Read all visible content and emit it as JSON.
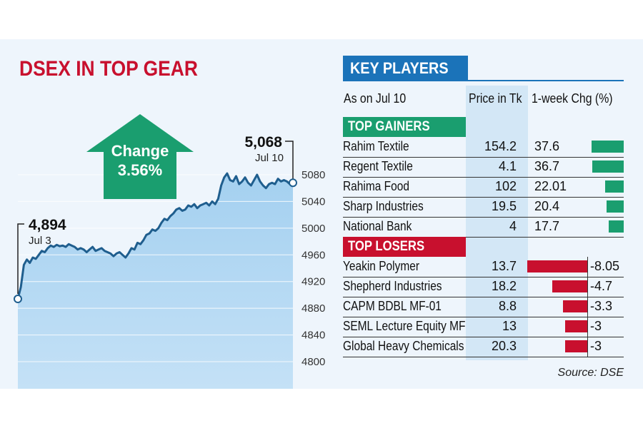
{
  "chart_data": [
    {
      "type": "area",
      "title": "DSEX IN TOP GEAR",
      "ylim": [
        4780,
        5100
      ],
      "yticks": [
        4800,
        4840,
        4880,
        4920,
        4960,
        5000,
        5040,
        5080
      ],
      "start": {
        "value": "4,894",
        "date": "Jul 3"
      },
      "end": {
        "value": "5,068",
        "date": "Jul 10"
      },
      "change": {
        "label": "Change",
        "value": "3.56%"
      },
      "values": [
        4894,
        4912,
        4945,
        4953,
        4948,
        4956,
        4954,
        4960,
        4966,
        4964,
        4970,
        4974,
        4972,
        4975,
        4973,
        4974,
        4972,
        4976,
        4974,
        4972,
        4968,
        4970,
        4968,
        4964,
        4968,
        4972,
        4966,
        4968,
        4970,
        4966,
        4964,
        4962,
        4958,
        4962,
        4964,
        4960,
        4956,
        4962,
        4970,
        4968,
        4978,
        4976,
        4982,
        4990,
        4992,
        4998,
        4996,
        5000,
        5008,
        5014,
        5012,
        5018,
        5022,
        5028,
        5030,
        5026,
        5028,
        5034,
        5032,
        5036,
        5030,
        5034,
        5036,
        5038,
        5034,
        5040,
        5036,
        5044,
        5064,
        5076,
        5082,
        5072,
        5070,
        5078,
        5066,
        5070,
        5076,
        5068,
        5064,
        5072,
        5080,
        5070,
        5064,
        5060,
        5066,
        5068,
        5066,
        5074,
        5070,
        5072,
        5070,
        5066,
        5068
      ]
    },
    {
      "type": "table",
      "title": "KEY PLAYERS",
      "as_on": "As on Jul 10",
      "columns": [
        "Price in Tk",
        "1-week Chg (%)"
      ],
      "sections": [
        {
          "label": "TOP GAINERS",
          "color": "#1a9e6f",
          "rows": [
            {
              "name": "Rahim Textile",
              "price": "154.2",
              "chg": "37.6",
              "value": 37.6
            },
            {
              "name": "Regent Textile",
              "price": "4.1",
              "chg": "36.7",
              "value": 36.7
            },
            {
              "name": "Rahima Food",
              "price": "102",
              "chg": "22.01",
              "value": 22.01
            },
            {
              "name": "Sharp Industries",
              "price": "19.5",
              "chg": "20.4",
              "value": 20.4
            },
            {
              "name": "National Bank",
              "price": "4",
              "chg": "17.7",
              "value": 17.7
            }
          ]
        },
        {
          "label": "TOP LOSERS",
          "color": "#c8102e",
          "rows": [
            {
              "name": "Yeakin Polymer",
              "price": "13.7",
              "chg": "-8.05",
              "value": -8.05
            },
            {
              "name": "Shepherd Industries",
              "price": "18.2",
              "chg": "-4.7",
              "value": -4.7
            },
            {
              "name": "CAPM BDBL MF-01",
              "price": "8.8",
              "chg": "-3.3",
              "value": -3.3
            },
            {
              "name": "SEML Lecture Equity MF",
              "price": "13",
              "chg": "-3",
              "value": -3
            },
            {
              "name": "Global Heavy Chemicals",
              "price": "20.3",
              "chg": "-3",
              "value": -3
            }
          ]
        }
      ]
    }
  ],
  "source": "Source: DSE",
  "colors": {
    "title": "#c8102e",
    "header": "#1b73b9",
    "area_fill": "#a9d3f1",
    "line": "#1f5e8e",
    "arrow": "#1a9e6f"
  }
}
